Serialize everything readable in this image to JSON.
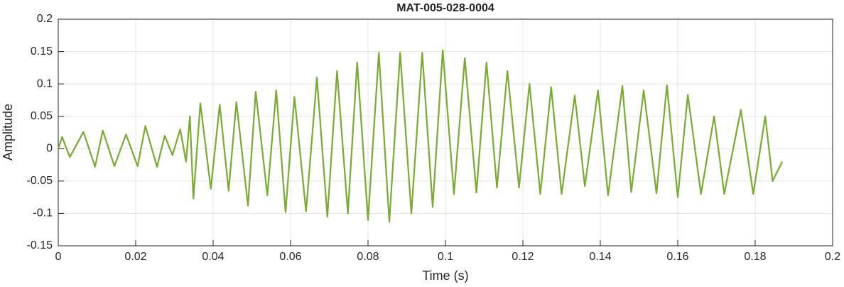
{
  "chart_data": {
    "type": "line",
    "title": "MAT-005-028-0004",
    "xlabel": "Time (s)",
    "ylabel": "Amplitude",
    "xlim": [
      0,
      0.2
    ],
    "xticks": [
      0,
      0.02,
      0.04,
      0.06,
      0.08,
      0.1,
      0.12,
      0.14,
      0.16,
      0.18,
      0.2
    ],
    "ylim": [
      -0.15,
      0.2
    ],
    "yticks": [
      -0.15,
      -0.1,
      -0.05,
      0,
      0.05,
      0.1,
      0.15,
      0.2
    ],
    "grid": true,
    "series": [
      {
        "color": "#77ac30",
        "x": [
          0,
          0.001,
          0.003,
          0.0065,
          0.0095,
          0.0115,
          0.0145,
          0.0175,
          0.0205,
          0.0225,
          0.0255,
          0.0275,
          0.0295,
          0.0315,
          0.033,
          0.034,
          0.0349,
          0.0367,
          0.0394,
          0.0417,
          0.044,
          0.046,
          0.049,
          0.051,
          0.054,
          0.0563,
          0.0587,
          0.061,
          0.064,
          0.0668,
          0.0695,
          0.072,
          0.0748,
          0.0772,
          0.08,
          0.0828,
          0.0855,
          0.0883,
          0.0912,
          0.094,
          0.0967,
          0.0993,
          0.1022,
          0.105,
          0.108,
          0.1106,
          0.1133,
          0.116,
          0.119,
          0.1217,
          0.1245,
          0.1273,
          0.13,
          0.1334,
          0.136,
          0.1394,
          0.142,
          0.1457,
          0.148,
          0.1512,
          0.1545,
          0.1572,
          0.16,
          0.1626,
          0.166,
          0.1694,
          0.172,
          0.1763,
          0.1795,
          0.1826,
          0.1845,
          0.187
        ],
        "values": [
          0,
          0.018,
          -0.013,
          0.026,
          -0.028,
          0.028,
          -0.027,
          0.022,
          -0.027,
          0.035,
          -0.028,
          0.02,
          -0.01,
          0.03,
          -0.02,
          0.05,
          -0.077,
          0.07,
          -0.062,
          0.068,
          -0.065,
          0.072,
          -0.088,
          0.088,
          -0.072,
          0.09,
          -0.098,
          0.08,
          -0.097,
          0.11,
          -0.105,
          0.12,
          -0.1,
          0.133,
          -0.11,
          0.148,
          -0.113,
          0.148,
          -0.1,
          0.148,
          -0.09,
          0.152,
          -0.07,
          0.14,
          -0.068,
          0.133,
          -0.06,
          0.12,
          -0.06,
          0.1,
          -0.07,
          0.095,
          -0.07,
          0.082,
          -0.058,
          0.09,
          -0.072,
          0.097,
          -0.067,
          0.09,
          -0.069,
          0.098,
          -0.075,
          0.083,
          -0.07,
          0.05,
          -0.07,
          0.06,
          -0.07,
          0.05,
          -0.05,
          -0.02
        ]
      }
    ]
  }
}
